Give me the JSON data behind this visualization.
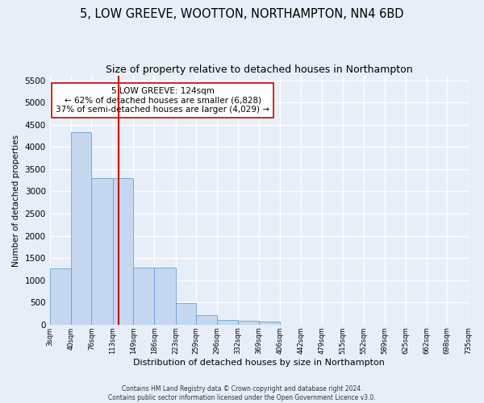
{
  "title": "5, LOW GREEVE, WOOTTON, NORTHAMPTON, NN4 6BD",
  "subtitle": "Size of property relative to detached houses in Northampton",
  "xlabel": "Distribution of detached houses by size in Northampton",
  "ylabel": "Number of detached properties",
  "footer_line1": "Contains HM Land Registry data © Crown copyright and database right 2024.",
  "footer_line2": "Contains public sector information licensed under the Open Government Licence v3.0.",
  "property_size": 124,
  "property_label": "5 LOW GREEVE: 124sqm",
  "annotation_line1": "← 62% of detached houses are smaller (6,828)",
  "annotation_line2": "37% of semi-detached houses are larger (4,029) →",
  "bar_color": "#c5d8f0",
  "bar_edge_color": "#6a9fd8",
  "marker_color": "#cc0000",
  "bin_edges": [
    3,
    40,
    76,
    113,
    149,
    186,
    223,
    259,
    296,
    332,
    369,
    406,
    442,
    479,
    515,
    552,
    589,
    625,
    662,
    698,
    735
  ],
  "bar_heights": [
    1260,
    4330,
    3300,
    3300,
    1280,
    1280,
    490,
    215,
    100,
    80,
    60,
    0,
    0,
    0,
    0,
    0,
    0,
    0,
    0,
    0
  ],
  "ylim": [
    0,
    5600
  ],
  "yticks": [
    0,
    500,
    1000,
    1500,
    2000,
    2500,
    3000,
    3500,
    4000,
    4500,
    5000,
    5500
  ],
  "background_color": "#e8eef8",
  "plot_background": "#e8eef8",
  "grid_color": "#ffffff",
  "title_fontsize": 10.5,
  "subtitle_fontsize": 9
}
